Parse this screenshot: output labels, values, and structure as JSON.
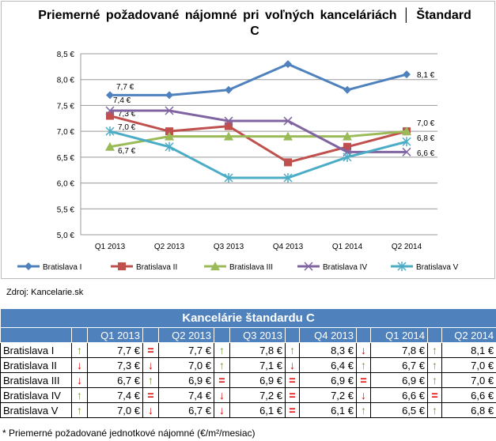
{
  "chart_data": {
    "type": "line",
    "title": "Priemerné požadované nájomné pri voľných kanceláriách │ Štandard C",
    "categories": [
      "Q1 2013",
      "Q2 2013",
      "Q3 2013",
      "Q4 2013",
      "Q1 2014",
      "Q2 2014"
    ],
    "yticks": [
      "5,0 €",
      "5,5 €",
      "6,0 €",
      "6,5 €",
      "7,0 €",
      "7,5 €",
      "8,0 €",
      "8,5 €"
    ],
    "ylim": [
      5.0,
      8.5
    ],
    "grid": true,
    "legend": "bottom",
    "series": [
      {
        "name": "Bratislava I",
        "values": [
          7.7,
          7.7,
          7.8,
          8.3,
          7.8,
          8.1
        ],
        "color": "#4f81bd",
        "marker": "diamond",
        "labels": [
          "7,7 €",
          "8,1 €"
        ]
      },
      {
        "name": "Bratislava II",
        "values": [
          7.3,
          7.0,
          7.1,
          6.4,
          6.7,
          7.0
        ],
        "color": "#c0504d",
        "marker": "square",
        "labels": [
          "7,3 €",
          "7,0 €"
        ]
      },
      {
        "name": "Bratislava III",
        "values": [
          6.7,
          6.9,
          6.9,
          6.9,
          6.9,
          7.0
        ],
        "color": "#9bbb59",
        "marker": "triangle",
        "labels": [
          "6,7 €",
          ""
        ]
      },
      {
        "name": "Bratislava IV",
        "values": [
          7.4,
          7.4,
          7.2,
          7.2,
          6.6,
          6.6
        ],
        "color": "#8064a2",
        "marker": "x",
        "labels": [
          "7,4 €",
          "6,6 €"
        ]
      },
      {
        "name": "Bratislava V",
        "values": [
          7.0,
          6.7,
          6.1,
          6.1,
          6.5,
          6.8
        ],
        "color": "#4bacc6",
        "marker": "star",
        "labels": [
          "7,0 €",
          "6,8 €"
        ]
      }
    ]
  },
  "source": "Zdroj: Kancelarie.sk",
  "table": {
    "title": "Kancelárie štandardu C",
    "headers": [
      "Q1 2013",
      "Q2 2013",
      "Q3 2013",
      "Q4 2013",
      "Q1 2014",
      "Q2 2014"
    ],
    "rows": [
      {
        "name": "Bratislava I",
        "cells": [
          [
            "up",
            "7,7 €"
          ],
          [
            "eq",
            "7,7 €"
          ],
          [
            "up",
            "7,8 €"
          ],
          [
            "up",
            "8,3 €"
          ],
          [
            "down",
            "7,8 €"
          ],
          [
            "up",
            "8,1 €"
          ]
        ]
      },
      {
        "name": "Bratislava II",
        "cells": [
          [
            "down",
            "7,3 €"
          ],
          [
            "down",
            "7,0 €"
          ],
          [
            "up",
            "7,1 €"
          ],
          [
            "down",
            "6,4 €"
          ],
          [
            "up",
            "6,7 €"
          ],
          [
            "up",
            "7,0 €"
          ]
        ]
      },
      {
        "name": "Bratislava III",
        "cells": [
          [
            "down",
            "6,7 €"
          ],
          [
            "up",
            "6,9 €"
          ],
          [
            "eq",
            "6,9 €"
          ],
          [
            "eq",
            "6,9 €"
          ],
          [
            "eq",
            "6,9 €"
          ],
          [
            "up",
            "7,0 €"
          ]
        ]
      },
      {
        "name": "Bratislava IV",
        "cells": [
          [
            "up",
            "7,4 €"
          ],
          [
            "eq",
            "7,4 €"
          ],
          [
            "down",
            "7,2 €"
          ],
          [
            "eq",
            "7,2 €"
          ],
          [
            "down",
            "6,6 €"
          ],
          [
            "eq",
            "6,6 €"
          ]
        ]
      },
      {
        "name": "Bratislava V",
        "cells": [
          [
            "up",
            "7,0 €"
          ],
          [
            "down",
            "6,7 €"
          ],
          [
            "down",
            "6,1 €"
          ],
          [
            "eq",
            "6,1 €"
          ],
          [
            "up",
            "6,5 €"
          ],
          [
            "up",
            "6,8 €"
          ]
        ]
      }
    ]
  },
  "footnote": "* Priemerné požadované jednotkové nájomné (€/m²/mesiac)",
  "arrows": {
    "up": "↑",
    "down": "↓",
    "eq": "="
  }
}
